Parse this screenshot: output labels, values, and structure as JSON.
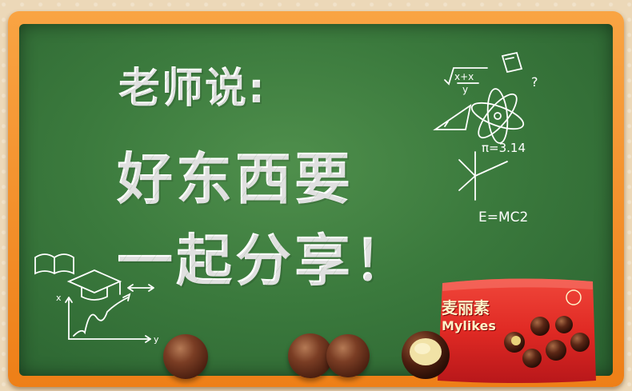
{
  "title_line1": "老师说:",
  "title_line2": "好东西要",
  "title_line3": "一起分享！",
  "formula_pi": "π=3.14",
  "formula_energy": "E=MC2",
  "product": {
    "brand_cn": "麦丽素",
    "brand_en": "Mylikes"
  },
  "colors": {
    "frame": "#f39a2e",
    "board": "#3b7a3d",
    "package": "#e02a24"
  }
}
